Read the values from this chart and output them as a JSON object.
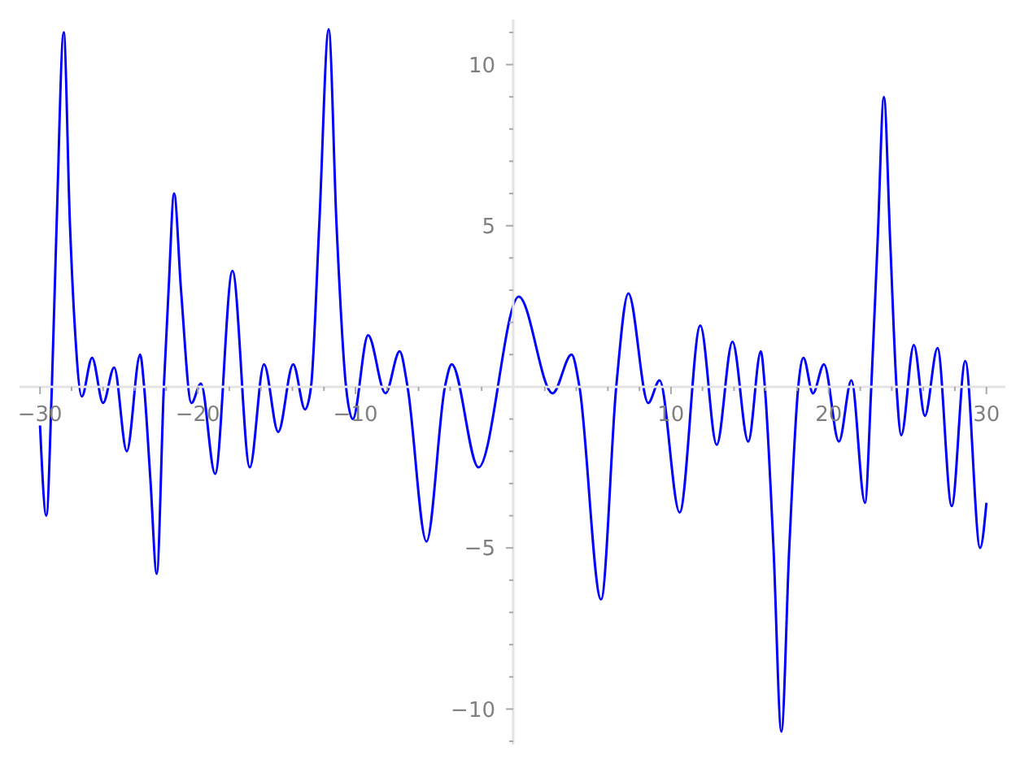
{
  "chart_data": {
    "type": "line",
    "x": [
      -30,
      -29.6,
      -29.25,
      -28.95,
      -28.5,
      -28.1,
      -27.8,
      -27.35,
      -26.7,
      -26.0,
      -25.3,
      -24.5,
      -23.65,
      -23.4,
      -23.0,
      -22.6,
      -22.15,
      -21.85,
      -21.5,
      -21.06,
      -20.4,
      -19.8,
      -18.9,
      -17.8,
      -16.7,
      -15.8,
      -14.9,
      -13.95,
      -13.2,
      -12.82,
      -12.3,
      -11.7,
      -11.2,
      -10.6,
      -10.17,
      -9.2,
      -8.1,
      -7.2,
      -6.7,
      -5.5,
      -4.33,
      -3.9,
      -2.2,
      0.35,
      2.5,
      3.7,
      4.2,
      5.57,
      6.53,
      7.3,
      8.56,
      9.28,
      10.55,
      11.86,
      12.9,
      13.9,
      14.9,
      15.7,
      15.95,
      16.5,
      17.0,
      17.5,
      18.07,
      18.4,
      19.0,
      19.7,
      20.65,
      21.44,
      22.3,
      22.7,
      23.1,
      23.5,
      23.9,
      24.3,
      24.6,
      25.4,
      26.1,
      26.9,
      27.8,
      28.66,
      29.6,
      30
    ],
    "series": [
      {
        "color": "#0000ff",
        "values": [
          -1.2,
          -4.0,
          0,
          5,
          11.0,
          5,
          1.9,
          -0.3,
          0.9,
          -0.5,
          0.6,
          -2.0,
          1.0,
          0,
          -2.9,
          -5.8,
          0,
          3,
          6.0,
          3,
          -0.5,
          0.1,
          -2.7,
          3.6,
          -2.5,
          0.7,
          -1.4,
          0.7,
          -0.7,
          0,
          5,
          11.1,
          5,
          0,
          -1.0,
          1.6,
          -0.2,
          1.1,
          0,
          -4.8,
          0,
          0.7,
          -2.5,
          2.8,
          -0.2,
          1.0,
          0,
          -6.6,
          0,
          2.9,
          -0.5,
          0.2,
          -3.9,
          1.9,
          -1.8,
          1.4,
          -1.7,
          1.1,
          0,
          -5,
          -10.7,
          -5,
          0,
          0.9,
          -0.2,
          0.7,
          -1.7,
          0.2,
          -3.6,
          0,
          4.5,
          9.0,
          4.5,
          0,
          -1.5,
          1.3,
          -0.9,
          1.2,
          -3.7,
          0.8,
          -5.0,
          -3.6
        ]
      }
    ],
    "xlim": [
      -31.3,
      31.2
    ],
    "ylim": [
      -11.1,
      11.4
    ],
    "xticks": [
      {
        "value": -30,
        "label": "−30"
      },
      {
        "value": -28,
        "label": null
      },
      {
        "value": -26,
        "label": null
      },
      {
        "value": -24,
        "label": null
      },
      {
        "value": -22,
        "label": null
      },
      {
        "value": -20,
        "label": "−20"
      },
      {
        "value": -18,
        "label": null
      },
      {
        "value": -16,
        "label": null
      },
      {
        "value": -14,
        "label": null
      },
      {
        "value": -12,
        "label": null
      },
      {
        "value": -10,
        "label": "−10"
      },
      {
        "value": -8,
        "label": null
      },
      {
        "value": -6,
        "label": null
      },
      {
        "value": -4,
        "label": null
      },
      {
        "value": -2,
        "label": null
      },
      {
        "value": 2,
        "label": null
      },
      {
        "value": 4,
        "label": null
      },
      {
        "value": 6,
        "label": null
      },
      {
        "value": 8,
        "label": null
      },
      10,
      {
        "value": 12,
        "label": null
      },
      {
        "value": 14,
        "label": null
      },
      {
        "value": 16,
        "label": null
      },
      {
        "value": 18,
        "label": null
      },
      20,
      {
        "value": 22,
        "label": null
      },
      {
        "value": 24,
        "label": null
      },
      {
        "value": 26,
        "label": null
      },
      {
        "value": 28,
        "label": null
      },
      30
    ],
    "yticks": [
      {
        "value": -11,
        "label": null
      },
      {
        "value": -10,
        "label": "−10"
      },
      {
        "value": -9,
        "label": null
      },
      {
        "value": -8,
        "label": null
      },
      {
        "value": -7,
        "label": null
      },
      {
        "value": -6,
        "label": null
      },
      {
        "value": -5,
        "label": "−5"
      },
      {
        "value": -4,
        "label": null
      },
      {
        "value": -3,
        "label": null
      },
      {
        "value": -2,
        "label": null
      },
      {
        "value": -1,
        "label": null
      },
      {
        "value": 1,
        "label": null
      },
      {
        "value": 2,
        "label": null
      },
      {
        "value": 3,
        "label": null
      },
      {
        "value": 4,
        "label": null
      },
      5,
      {
        "value": 6,
        "label": null
      },
      {
        "value": 7,
        "label": null
      },
      {
        "value": 8,
        "label": null
      },
      {
        "value": 9,
        "label": null
      },
      10,
      {
        "value": 11,
        "label": null
      }
    ],
    "line_style": "solid"
  }
}
